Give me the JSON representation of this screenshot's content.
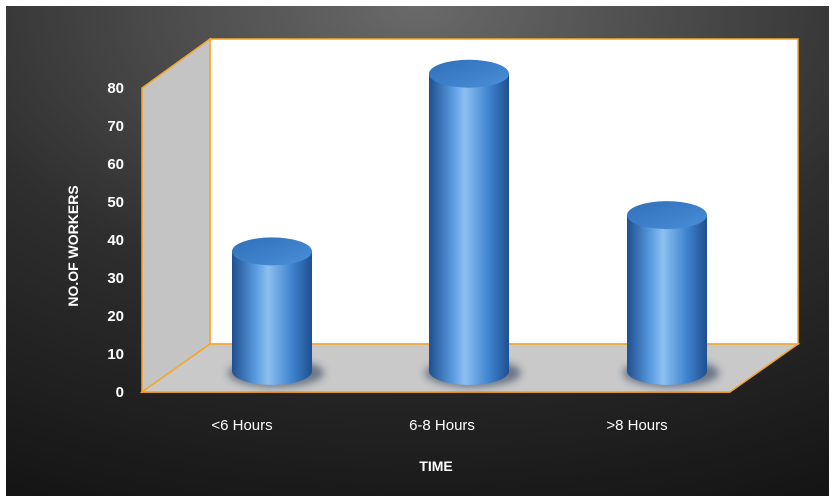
{
  "chart_data": {
    "type": "bar",
    "style": "3d-cylinder",
    "categories": [
      "<6 Hours",
      "6-8 Hours",
      ">8 Hours"
    ],
    "values": [
      33,
      82,
      43
    ],
    "xlabel": "TIME",
    "ylabel": "NO.OF WORKERS",
    "ylim": [
      0,
      80
    ],
    "yticks": [
      0,
      10,
      20,
      30,
      40,
      50,
      60,
      70,
      80
    ],
    "grid": false,
    "legend": "none",
    "colors": {
      "background_dark": "#1a1a1a",
      "background_light": "#6a6a6a",
      "wall": "#ffffff",
      "side_wall": "#c4c4c4",
      "floor": "#c9c9c9",
      "frame": "#f5a623",
      "bar": "#3f83cf",
      "bar_highlight": "#8cc0f0",
      "bar_shadow": "#1f4f8f"
    }
  }
}
